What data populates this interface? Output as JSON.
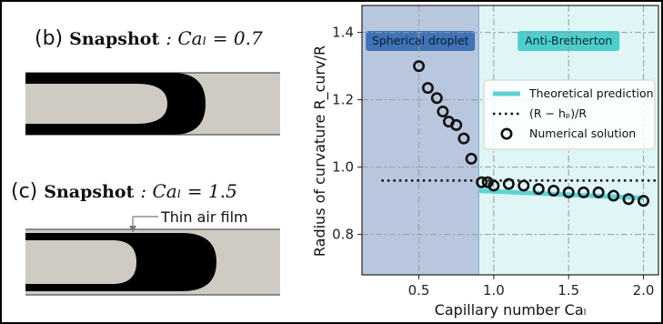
{
  "snapshots": [
    {
      "tag": "(b)",
      "word": "Snapshot",
      "math": ": Caₗ = 0.7"
    },
    {
      "tag": "(c)",
      "word": "Snapshot",
      "math": ": Caₗ = 1.5",
      "annotation": "Thin air film"
    }
  ],
  "chart_data": {
    "type": "scatter",
    "xlabel": "Capillary number Caₗ",
    "ylabel": "Radius of curvature R_curv/R",
    "xlim": [
      0.12,
      2.1
    ],
    "ylim": [
      0.68,
      1.48
    ],
    "x_ticks": [
      0.5,
      1.0,
      1.5,
      2.0
    ],
    "x_tick_labels": [
      "0.5",
      "1.0",
      "1.5",
      "2.0"
    ],
    "y_ticks": [
      0.8,
      1.0,
      1.2,
      1.4
    ],
    "y_tick_labels": [
      "0.8",
      "1.0",
      "1.2",
      "1.4"
    ],
    "grid": true,
    "regions": [
      {
        "label": "Spherical droplet",
        "x_range": [
          0.12,
          0.9
        ],
        "color": "#b9c7de",
        "label_bg": "#3f73b5"
      },
      {
        "label": "Anti-Bretherton",
        "x_range": [
          0.9,
          2.1
        ],
        "color": "#dff5f6",
        "label_bg": "#4ecdcd"
      }
    ],
    "series": [
      {
        "name": "Theoretical prediction",
        "kind": "line",
        "color": "#5fd3d3",
        "x": [
          0.9,
          1.0,
          1.2,
          1.4,
          1.6,
          1.8,
          2.0
        ],
        "y": [
          0.93,
          0.928,
          0.924,
          0.92,
          0.916,
          0.912,
          0.908
        ]
      },
      {
        "name": "(R − hₚ)/R",
        "kind": "dotted",
        "color": "#111111",
        "x": [
          0.25,
          2.1
        ],
        "y": [
          0.96,
          0.96
        ]
      },
      {
        "name": "Numerical solution",
        "kind": "marker",
        "color": "#111111",
        "x": [
          0.5,
          0.56,
          0.62,
          0.66,
          0.7,
          0.75,
          0.8,
          0.85,
          0.92,
          0.96,
          1.0,
          1.1,
          1.2,
          1.3,
          1.4,
          1.5,
          1.6,
          1.7,
          1.8,
          1.9,
          2.0
        ],
        "y": [
          1.3,
          1.235,
          1.205,
          1.165,
          1.135,
          1.125,
          1.085,
          1.025,
          0.955,
          0.955,
          0.945,
          0.95,
          0.945,
          0.935,
          0.93,
          0.925,
          0.925,
          0.925,
          0.915,
          0.905,
          0.9
        ]
      }
    ],
    "legend_position": "right"
  }
}
